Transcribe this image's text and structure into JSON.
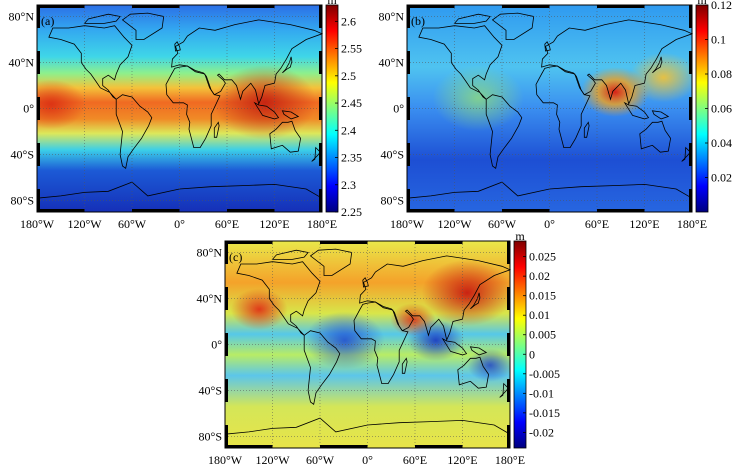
{
  "panels": [
    {
      "id": "a",
      "label": "(a)",
      "unit": "m",
      "colorbar_ticks": [
        "2.6",
        "2.55",
        "2.5",
        "2.45",
        "2.4",
        "2.35",
        "2.3",
        "2.25"
      ],
      "colorbar_range": [
        2.25,
        2.63
      ],
      "lat_ticks": [
        "80°N",
        "40°N",
        "0°",
        "40°S",
        "80°S"
      ],
      "lon_ticks": [
        "180°W",
        "120°W",
        "60°W",
        "0°",
        "60°E",
        "120°E",
        "180°E"
      ]
    },
    {
      "id": "b",
      "label": "(b)",
      "unit": "m",
      "colorbar_ticks": [
        "0.12",
        "0.1",
        "0.08",
        "0.06",
        "0.04",
        "0.02"
      ],
      "colorbar_range": [
        0.0,
        0.12
      ],
      "lat_ticks": [
        "80°N",
        "40°N",
        "0°",
        "40°S",
        "80°S"
      ],
      "lon_ticks": [
        "180°W",
        "120°W",
        "60°W",
        "0°",
        "60°E",
        "120°E",
        "180°E"
      ]
    },
    {
      "id": "c",
      "label": "(c)",
      "unit": "m",
      "colorbar_ticks": [
        "0.025",
        "0.02",
        "0.015",
        "0.01",
        "0.005",
        "0",
        "-0.005",
        "-0.01",
        "-0.015",
        "-0.02"
      ],
      "colorbar_range": [
        -0.024,
        0.029
      ],
      "lat_ticks": [
        "80°N",
        "40°N",
        "0°",
        "40°S",
        "80°S"
      ],
      "lon_ticks": [
        "180°W",
        "120°W",
        "60°W",
        "0°",
        "60°E",
        "120°E",
        "180°E"
      ]
    }
  ],
  "colormap": "jet"
}
